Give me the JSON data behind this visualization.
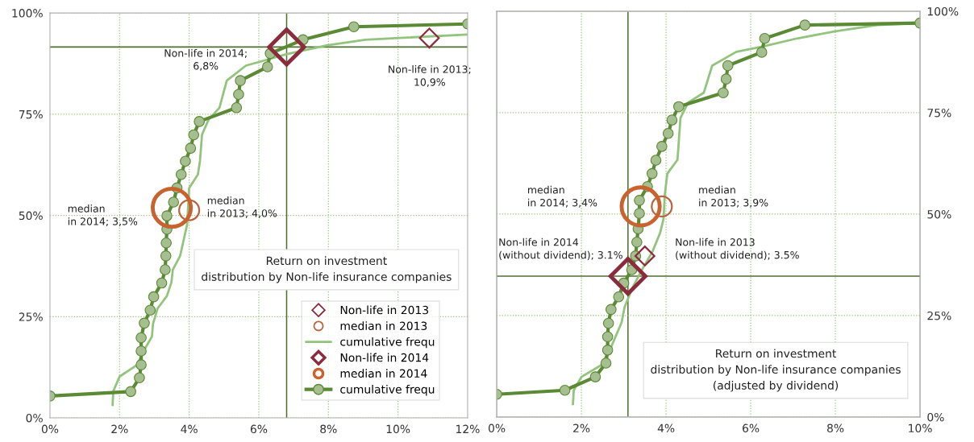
{
  "chart_data": [
    {
      "type": "line",
      "title": "Return on investment\ndistribution by Non-life insurance companies",
      "xlim": [
        0,
        12
      ],
      "xticks": [
        {
          "value": 0,
          "label": "0%"
        },
        {
          "value": 2,
          "label": "2%"
        },
        {
          "value": 4,
          "label": "4%"
        },
        {
          "value": 6,
          "label": "6%"
        },
        {
          "value": 8,
          "label": "8%"
        },
        {
          "value": 10,
          "label": "10%"
        },
        {
          "value": 12,
          "label": "12%"
        }
      ],
      "ylim": [
        0,
        100
      ],
      "yticks": [
        {
          "value": 0,
          "label": "0%"
        },
        {
          "value": 25,
          "label": "25%"
        },
        {
          "value": 50,
          "label": "50%"
        },
        {
          "value": 75,
          "label": "75%"
        },
        {
          "value": 100,
          "label": "100%"
        }
      ],
      "grid": true,
      "legend": "lower right",
      "series": [
        {
          "name": "Non-life in 2013",
          "type": "scatter",
          "marker": "diamond",
          "color": "#8b2c3c",
          "x": [
            10.9
          ],
          "values": [
            93.8
          ]
        },
        {
          "name": "median in 2013",
          "type": "scatter",
          "marker": "circle",
          "color": "#b8643e",
          "x": [
            4.0
          ],
          "values": [
            51.3
          ]
        },
        {
          "name": "cumulative frequ",
          "marker": "none",
          "color": "#93c47d",
          "x": [
            1.8,
            1.82,
            2.0,
            2.49,
            2.73,
            2.93,
            2.96,
            3.09,
            3.36,
            3.49,
            3.53,
            3.74,
            3.83,
            3.94,
            4.0,
            4.25,
            4.31,
            4.37,
            4.56,
            4.87,
            5.08,
            5.63,
            6.25,
            6.79,
            7.95,
            9.06,
            12
          ],
          "values": [
            3.2,
            6.6,
            10.2,
            13.0,
            17.1,
            20.1,
            23.2,
            27.0,
            30.1,
            33.5,
            36.6,
            40.0,
            43.5,
            47.7,
            56.8,
            60.1,
            63.5,
            70.0,
            73.7,
            76.6,
            83.3,
            87.0,
            88.5,
            89.8,
            92.0,
            93.4,
            94.7
          ]
        },
        {
          "name": "Non-life in 2014",
          "type": "scatter",
          "marker": "diamond",
          "color": "#8b2c3c",
          "x": [
            6.8
          ],
          "values": [
            91.6
          ]
        },
        {
          "name": "median in 2014",
          "type": "scatter",
          "marker": "circle",
          "color": "#c8622e",
          "x": [
            3.5
          ],
          "values": [
            51.9
          ]
        },
        {
          "name": "cumulative frequ",
          "marker": "circle",
          "color": "#5b8a35",
          "x": [
            0,
            2.32,
            2.57,
            2.62,
            2.62,
            2.62,
            2.71,
            2.88,
            2.98,
            3.21,
            3.31,
            3.33,
            3.34,
            3.36,
            3.36,
            3.55,
            3.65,
            3.77,
            3.89,
            4.04,
            4.13,
            4.29,
            5.36,
            5.42,
            5.47,
            6.25,
            6.33,
            7.27,
            8.73,
            12
          ],
          "values": [
            5.4,
            6.5,
            9.9,
            13.1,
            16.5,
            19.8,
            23.4,
            26.6,
            29.9,
            33.3,
            36.6,
            40.0,
            43.2,
            46.6,
            49.9,
            53.3,
            56.8,
            60.1,
            63.4,
            66.6,
            69.9,
            73.2,
            76.6,
            79.9,
            83.3,
            86.7,
            90.0,
            93.4,
            96.6,
            97.3
          ]
        }
      ],
      "ref_lines": [
        {
          "axis": "x",
          "value": 6.8,
          "color": "#4f6f2f"
        },
        {
          "axis": "y",
          "value": 91.6,
          "color": "#4f6f2f"
        }
      ],
      "annotations": [
        "Non-life in 2014;\n6,8%",
        "Non-life in 2013;\n10,9%",
        "median\nin 2014; 3,5%",
        "median\nin 2013; 4,0%"
      ]
    },
    {
      "type": "line",
      "title": "Return on investment\ndistribution by Non-life insurance companies\n(adjusted by dividend)",
      "xlim": [
        0,
        10
      ],
      "xticks": [
        {
          "value": 0,
          "label": "0%"
        },
        {
          "value": 2,
          "label": "2%"
        },
        {
          "value": 4,
          "label": "4%"
        },
        {
          "value": 6,
          "label": "6%"
        },
        {
          "value": 8,
          "label": "8%"
        },
        {
          "value": 10,
          "label": "10%"
        }
      ],
      "y2lim": [
        0,
        100
      ],
      "y2ticks": [
        {
          "value": 0,
          "label": "0%"
        },
        {
          "value": 25,
          "label": "25%"
        },
        {
          "value": 50,
          "label": "50%"
        },
        {
          "value": 75,
          "label": "75%"
        },
        {
          "value": 100,
          "label": "100%"
        }
      ],
      "grid": true,
      "series": [
        {
          "type": "scatter",
          "axis": "y2",
          "marker": "diamond",
          "color": "#8b2c3c",
          "x": [
            3.5
          ],
          "values": [
            39.7
          ]
        },
        {
          "type": "scatter",
          "axis": "y2",
          "marker": "circle",
          "color": "#b8643e",
          "x": [
            3.9
          ],
          "values": [
            51.9
          ]
        },
        {
          "axis": "y2",
          "marker": "none",
          "color": "#93c47d",
          "x": [
            1.8,
            1.82,
            2.0,
            2.47,
            2.7,
            2.95,
            3.02,
            3.2,
            3.43,
            3.68,
            3.86,
            3.94,
            3.97,
            4.03,
            4.27,
            4.34,
            4.52,
            4.89,
            5.09,
            5.66,
            6.32,
            7.09,
            7.97,
            8.99,
            10
          ],
          "values": [
            3.2,
            6.6,
            9.9,
            12.8,
            17.2,
            23.3,
            27.1,
            31.7,
            36.3,
            40.8,
            45.4,
            48.8,
            54.8,
            60.0,
            63.4,
            73.7,
            77.5,
            79.9,
            86.6,
            90.0,
            91.4,
            93.3,
            95.0,
            96.6,
            97.1
          ]
        },
        {
          "type": "scatter",
          "axis": "y2",
          "marker": "diamond",
          "color": "#8b2c3c",
          "x": [
            3.1
          ],
          "values": [
            34.7
          ]
        },
        {
          "type": "scatter",
          "axis": "y2",
          "marker": "circle",
          "color": "#c8622e",
          "x": [
            3.4
          ],
          "values": [
            51.9
          ]
        },
        {
          "axis": "y2",
          "marker": "circle",
          "color": "#5b8a35",
          "x": [
            0,
            1.61,
            2.33,
            2.58,
            2.62,
            2.62,
            2.64,
            2.7,
            2.88,
            3.0,
            3.19,
            3.28,
            3.31,
            3.34,
            3.37,
            3.37,
            3.56,
            3.67,
            3.76,
            3.9,
            4.05,
            4.14,
            4.3,
            5.35,
            5.42,
            5.46,
            6.26,
            6.33,
            7.28,
            10
          ],
          "values": [
            5.6,
            6.6,
            9.9,
            13.3,
            16.5,
            19.8,
            23.1,
            26.5,
            29.6,
            33.0,
            36.3,
            39.7,
            43.1,
            46.4,
            50.2,
            53.4,
            56.8,
            60.0,
            63.3,
            66.7,
            69.9,
            73.2,
            76.5,
            79.9,
            83.3,
            86.6,
            89.9,
            93.3,
            96.6,
            97.1
          ]
        }
      ],
      "ref_lines": [
        {
          "axis": "x",
          "value": 3.1,
          "color": "#4f6f2f"
        },
        {
          "axis": "y2",
          "value": 34.7,
          "color": "#4f6f2f"
        }
      ],
      "annotations": [
        "median\nin 2014; 3,4%",
        "median\nin 2013; 3,9%",
        "Non-life in 2014\n(without dividend); 3.1%",
        "Non-life in 2013\n(without dividend); 3.5%"
      ]
    }
  ]
}
